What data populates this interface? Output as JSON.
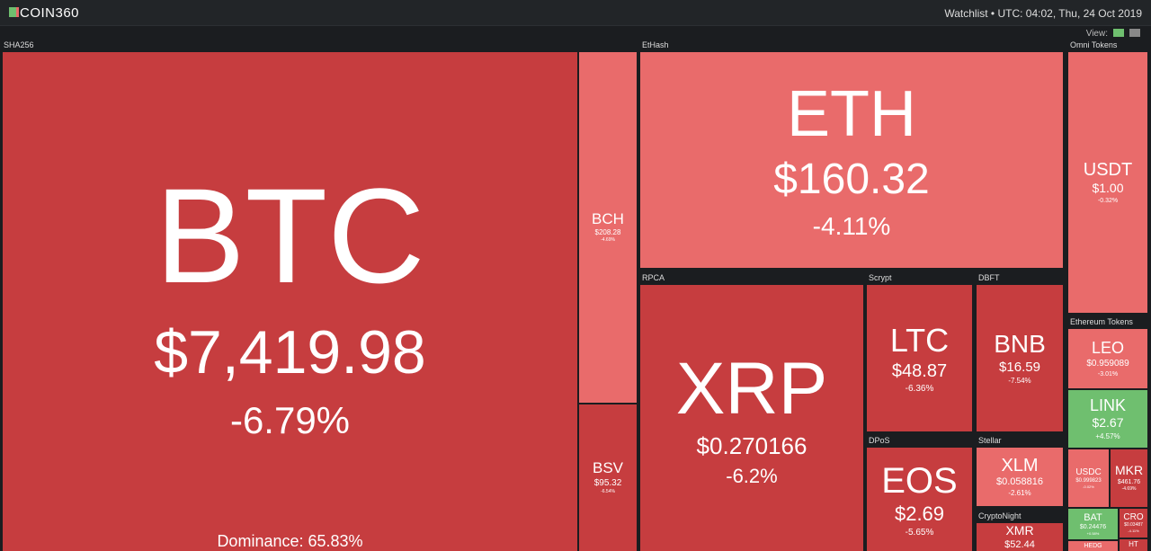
{
  "header": {
    "logo": "COIN360",
    "watchlist": "Watchlist",
    "time": "UTC: 04:02, Thu, 24 Oct 2019",
    "view": "View:"
  },
  "groups": [
    {
      "label": "SHA256",
      "tiles": [
        {
          "symbol": "BTC",
          "price": "$7,419.98",
          "change": "-6.79%",
          "note": "Dominance: 65.83%"
        },
        {
          "symbol": "BCH",
          "price": "$208.28",
          "change": "-4.69%"
        },
        {
          "symbol": "BSV",
          "price": "$95.32",
          "change": "-6.54%"
        }
      ]
    },
    {
      "label": "EtHash",
      "tiles": [
        {
          "symbol": "ETH",
          "price": "$160.32",
          "change": "-4.11%"
        }
      ]
    },
    {
      "label": "RPCA",
      "tiles": [
        {
          "symbol": "XRP",
          "price": "$0.270166",
          "change": "-6.2%"
        }
      ]
    },
    {
      "label": "Scrypt",
      "tiles": [
        {
          "symbol": "LTC",
          "price": "$48.87",
          "change": "-6.36%"
        }
      ]
    },
    {
      "label": "DBFT",
      "tiles": [
        {
          "symbol": "BNB",
          "price": "$16.59",
          "change": "-7.54%"
        }
      ]
    },
    {
      "label": "DPoS",
      "tiles": [
        {
          "symbol": "EOS",
          "price": "$2.69",
          "change": "-5.65%"
        }
      ]
    },
    {
      "label": "Stellar",
      "tiles": [
        {
          "symbol": "XLM",
          "price": "$0.058816",
          "change": "-2.61%"
        }
      ]
    },
    {
      "label": "CryptoNight",
      "tiles": [
        {
          "symbol": "XMR",
          "price": "$52.44"
        }
      ]
    },
    {
      "label": "Omni Tokens",
      "tiles": [
        {
          "symbol": "USDT",
          "price": "$1.00",
          "change": "-0.32%"
        }
      ]
    },
    {
      "label": "Ethereum Tokens",
      "tiles": [
        {
          "symbol": "LEO",
          "price": "$0.959089",
          "change": "-3.01%"
        },
        {
          "symbol": "LINK",
          "price": "$2.67",
          "change": "+4.57%"
        },
        {
          "symbol": "USDC",
          "price": "$0.999823",
          "change": "-0.02%"
        },
        {
          "symbol": "MKR",
          "price": "$461.76",
          "change": "-4.69%"
        },
        {
          "symbol": "BAT",
          "price": "$0.24476",
          "change": "+0.58%"
        },
        {
          "symbol": "CRO",
          "price": "$0.03487",
          "change": "-4.11%"
        },
        {
          "symbol": "HEDG"
        },
        {
          "symbol": "HT"
        }
      ]
    }
  ]
}
